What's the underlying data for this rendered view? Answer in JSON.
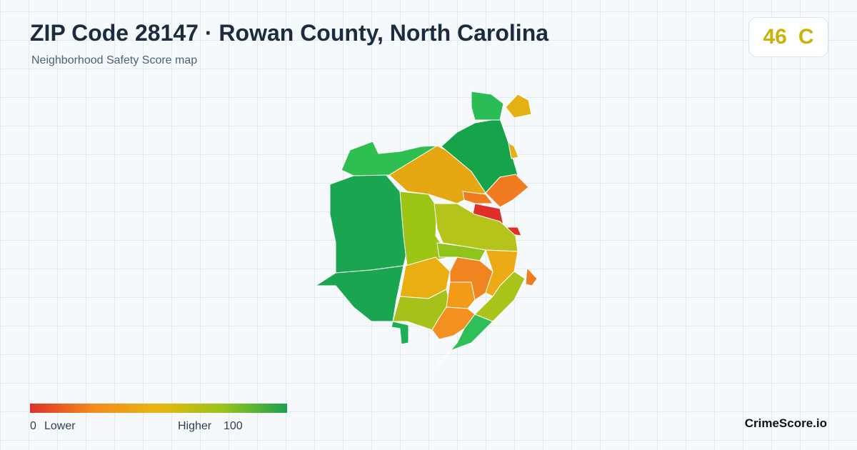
{
  "header": {
    "title": "ZIP Code 28147 · Rowan County, North Carolina",
    "subtitle": "Neighborhood Safety Score map"
  },
  "score": {
    "value": 46,
    "grade": "C"
  },
  "legend": {
    "min": 0,
    "min_label": "Lower",
    "max_label": "Higher",
    "max": 100
  },
  "footer": {
    "brand": "CrimeScore.io"
  }
}
